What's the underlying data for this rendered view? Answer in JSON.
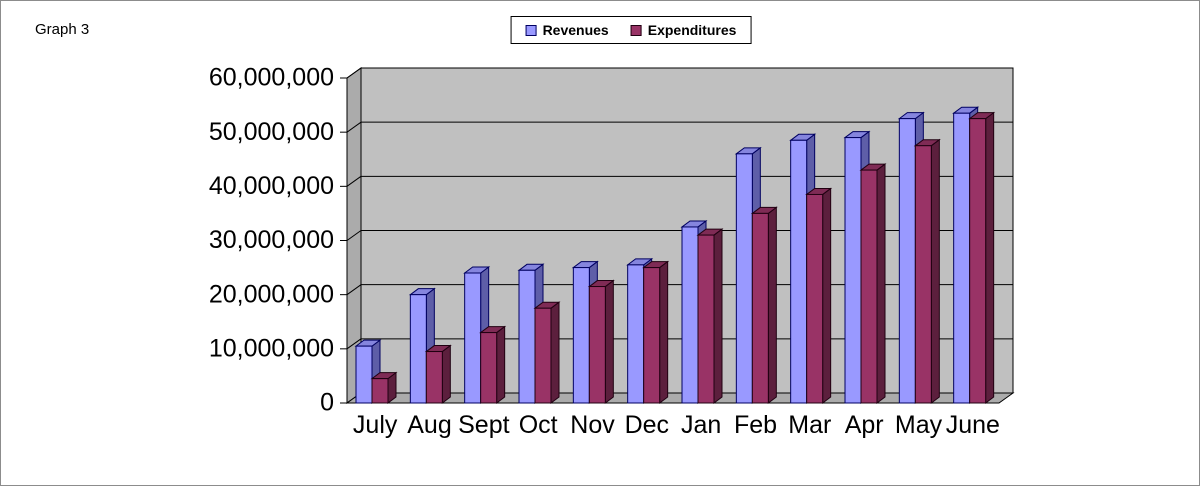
{
  "chart_data": {
    "type": "bar",
    "subtype": "3d-clustered-column",
    "title": "Graph 3",
    "categories": [
      "July",
      "Aug",
      "Sept",
      "Oct",
      "Nov",
      "Dec",
      "Jan",
      "Feb",
      "Mar",
      "Apr",
      "May",
      "June"
    ],
    "series": [
      {
        "name": "Revenues",
        "color": "#9999FF",
        "top": "#8585DE",
        "side": "#5E5EA8",
        "border": "#000060",
        "values": [
          10500000,
          20000000,
          24000000,
          24500000,
          25000000,
          25500000,
          32500000,
          46000000,
          48500000,
          49000000,
          52500000,
          53500000
        ]
      },
      {
        "name": "Expenditures",
        "color": "#993366",
        "top": "#7F2B55",
        "side": "#5C1F3D",
        "border": "#200011",
        "values": [
          4500000,
          9500000,
          13000000,
          17500000,
          21500000,
          25000000,
          31000000,
          35000000,
          38500000,
          43000000,
          47500000,
          52500000
        ]
      }
    ],
    "ylim": [
      0,
      60000000
    ],
    "ytick_step": 10000000,
    "ytick_labels": [
      "0",
      "10,000,000",
      "20,000,000",
      "30,000,000",
      "40,000,000",
      "50,000,000",
      "60,000,000"
    ],
    "grid": true,
    "legend_position": "top",
    "plot_bg": "#C0C0C0",
    "wall_color": "#ABABAB",
    "floor_color": "#ABABAB"
  }
}
